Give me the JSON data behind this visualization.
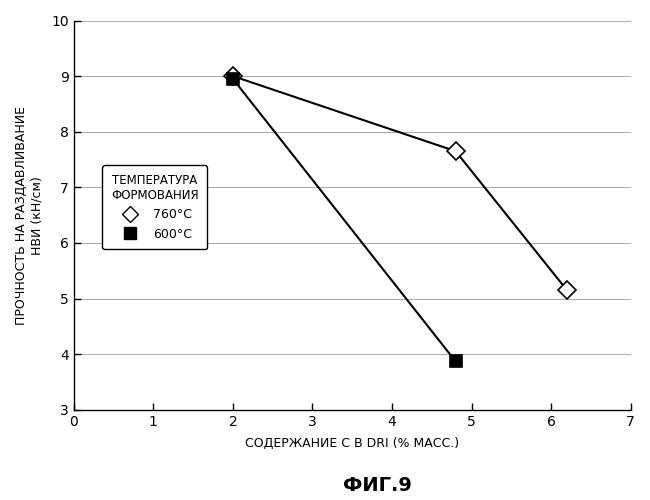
{
  "series_760": {
    "x": [
      2.0,
      4.8,
      6.2
    ],
    "y": [
      9.0,
      7.65,
      5.15
    ],
    "label": "760°C",
    "marker": "D",
    "color": "#000000",
    "markersize": 9,
    "markerfacecolor": "white"
  },
  "series_600": {
    "x": [
      2.0,
      4.8
    ],
    "y": [
      8.95,
      3.87
    ],
    "label": "600°C",
    "marker": "s",
    "color": "#000000",
    "markersize": 9,
    "markerfacecolor": "black"
  },
  "xlabel": "СОДЕРЖАНИЕ С В DRI (% МАСС.)",
  "ylabel_line1": "ПРОЧНОСТЬ НА РАЗДАВЛИВАНИЕ",
  "ylabel_line2": "НВИ (кН/см)",
  "title": "ФИГ.9",
  "xlim": [
    0,
    7
  ],
  "ylim": [
    3,
    10
  ],
  "xticks": [
    0,
    1,
    2,
    3,
    4,
    5,
    6,
    7
  ],
  "yticks": [
    3,
    4,
    5,
    6,
    7,
    8,
    9,
    10
  ],
  "legend_title": "ТЕМПЕРАТУРА\nФОРМОВАНИЯ",
  "background_color": "#ffffff",
  "linewidth": 1.5
}
